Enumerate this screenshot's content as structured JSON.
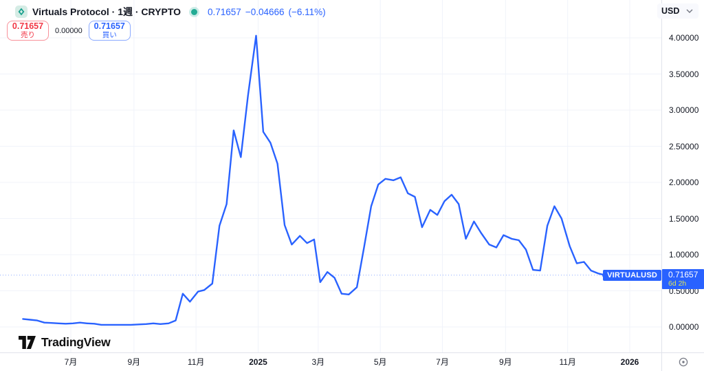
{
  "header": {
    "symbol_title": "Virtuals Protocol · 1週 · CRYPTO",
    "last_price": "0.71657",
    "change": "−0.04666",
    "change_pct": "(−6.11%)",
    "sell": {
      "price": "0.71657",
      "label": "売り"
    },
    "spread": "0.00000",
    "buy": {
      "price": "0.71657",
      "label": "買い"
    }
  },
  "axis": {
    "currency": "USD"
  },
  "price_label": {
    "symbol": "VIRTUALUSD",
    "price": "0.71657",
    "countdown": "6d 2h"
  },
  "footer": {
    "brand": "TradingView"
  },
  "colors": {
    "line": "#2962ff",
    "badge": "#2962ff",
    "sell_red": "#f23645",
    "buy_blue": "#2962ff",
    "status_green": "#22ab94",
    "grid": "#f0f3fa"
  },
  "chart_data": {
    "type": "line",
    "title": "Virtuals Protocol (VIRTUALUSD) weekly close, USD",
    "xlabel": "",
    "ylabel": "USD",
    "grid": true,
    "legend_position": "none",
    "ylim": [
      0,
      4.2
    ],
    "y_ticks": [
      0,
      0.5,
      1,
      1.5,
      2,
      2.5,
      3,
      3.5,
      4
    ],
    "x_ticks": [
      {
        "label": "7月",
        "date": "2024-07-01",
        "bold": false
      },
      {
        "label": "9月",
        "date": "2024-09-01",
        "bold": false
      },
      {
        "label": "11月",
        "date": "2024-11-01",
        "bold": false
      },
      {
        "label": "2025",
        "date": "2025-01-01",
        "bold": true
      },
      {
        "label": "3月",
        "date": "2025-03-01",
        "bold": false
      },
      {
        "label": "5月",
        "date": "2025-05-01",
        "bold": false
      },
      {
        "label": "7月",
        "date": "2025-07-01",
        "bold": false
      },
      {
        "label": "9月",
        "date": "2025-09-01",
        "bold": false
      },
      {
        "label": "11月",
        "date": "2025-11-01",
        "bold": false
      },
      {
        "label": "2026",
        "date": "2026-01-01",
        "bold": true
      }
    ],
    "current_price": 0.71657,
    "series": [
      {
        "name": "VIRTUALUSD",
        "points": [
          [
            "2024-05-15",
            0.11
          ],
          [
            "2024-05-22",
            0.1
          ],
          [
            "2024-05-29",
            0.09
          ],
          [
            "2024-06-05",
            0.06
          ],
          [
            "2024-06-12",
            0.055
          ],
          [
            "2024-06-19",
            0.05
          ],
          [
            "2024-06-26",
            0.045
          ],
          [
            "2024-07-03",
            0.05
          ],
          [
            "2024-07-10",
            0.06
          ],
          [
            "2024-07-17",
            0.05
          ],
          [
            "2024-07-24",
            0.045
          ],
          [
            "2024-07-31",
            0.03
          ],
          [
            "2024-08-08",
            0.03
          ],
          [
            "2024-08-15",
            0.03
          ],
          [
            "2024-08-22",
            0.03
          ],
          [
            "2024-08-29",
            0.03
          ],
          [
            "2024-09-06",
            0.035
          ],
          [
            "2024-09-13",
            0.04
          ],
          [
            "2024-09-20",
            0.05
          ],
          [
            "2024-09-27",
            0.04
          ],
          [
            "2024-10-05",
            0.05
          ],
          [
            "2024-10-12",
            0.09
          ],
          [
            "2024-10-19",
            0.46
          ],
          [
            "2024-10-26",
            0.35
          ],
          [
            "2024-11-03",
            0.49
          ],
          [
            "2024-11-09",
            0.51
          ],
          [
            "2024-11-17",
            0.6
          ],
          [
            "2024-11-24",
            1.4
          ],
          [
            "2024-12-01",
            1.7
          ],
          [
            "2024-12-08",
            2.72
          ],
          [
            "2024-12-15",
            2.35
          ],
          [
            "2024-12-22",
            3.2
          ],
          [
            "2024-12-30",
            4.03
          ],
          [
            "2025-01-06",
            2.7
          ],
          [
            "2025-01-13",
            2.55
          ],
          [
            "2025-01-20",
            2.26
          ],
          [
            "2025-01-27",
            1.41
          ],
          [
            "2025-02-03",
            1.14
          ],
          [
            "2025-02-11",
            1.26
          ],
          [
            "2025-02-18",
            1.16
          ],
          [
            "2025-02-25",
            1.21
          ],
          [
            "2025-03-03",
            0.62
          ],
          [
            "2025-03-10",
            0.76
          ],
          [
            "2025-03-17",
            0.68
          ],
          [
            "2025-03-24",
            0.46
          ],
          [
            "2025-03-31",
            0.45
          ],
          [
            "2025-04-08",
            0.55
          ],
          [
            "2025-04-15",
            1.1
          ],
          [
            "2025-04-22",
            1.67
          ],
          [
            "2025-04-29",
            1.97
          ],
          [
            "2025-05-06",
            2.05
          ],
          [
            "2025-05-14",
            2.03
          ],
          [
            "2025-05-21",
            2.07
          ],
          [
            "2025-05-28",
            1.85
          ],
          [
            "2025-06-04",
            1.8
          ],
          [
            "2025-06-11",
            1.38
          ],
          [
            "2025-06-19",
            1.62
          ],
          [
            "2025-06-26",
            1.55
          ],
          [
            "2025-07-03",
            1.74
          ],
          [
            "2025-07-10",
            1.83
          ],
          [
            "2025-07-17",
            1.7
          ],
          [
            "2025-07-24",
            1.22
          ],
          [
            "2025-08-01",
            1.46
          ],
          [
            "2025-08-08",
            1.3
          ],
          [
            "2025-08-16",
            1.14
          ],
          [
            "2025-08-23",
            1.1
          ],
          [
            "2025-08-30",
            1.27
          ],
          [
            "2025-09-07",
            1.22
          ],
          [
            "2025-09-14",
            1.2
          ],
          [
            "2025-09-21",
            1.07
          ],
          [
            "2025-09-28",
            0.79
          ],
          [
            "2025-10-05",
            0.78
          ],
          [
            "2025-10-12",
            1.4
          ],
          [
            "2025-10-19",
            1.67
          ],
          [
            "2025-10-26",
            1.5
          ],
          [
            "2025-11-03",
            1.12
          ],
          [
            "2025-11-10",
            0.88
          ],
          [
            "2025-11-17",
            0.9
          ],
          [
            "2025-11-24",
            0.78
          ],
          [
            "2025-12-01",
            0.74
          ],
          [
            "2025-12-08",
            0.71657
          ]
        ]
      }
    ]
  }
}
